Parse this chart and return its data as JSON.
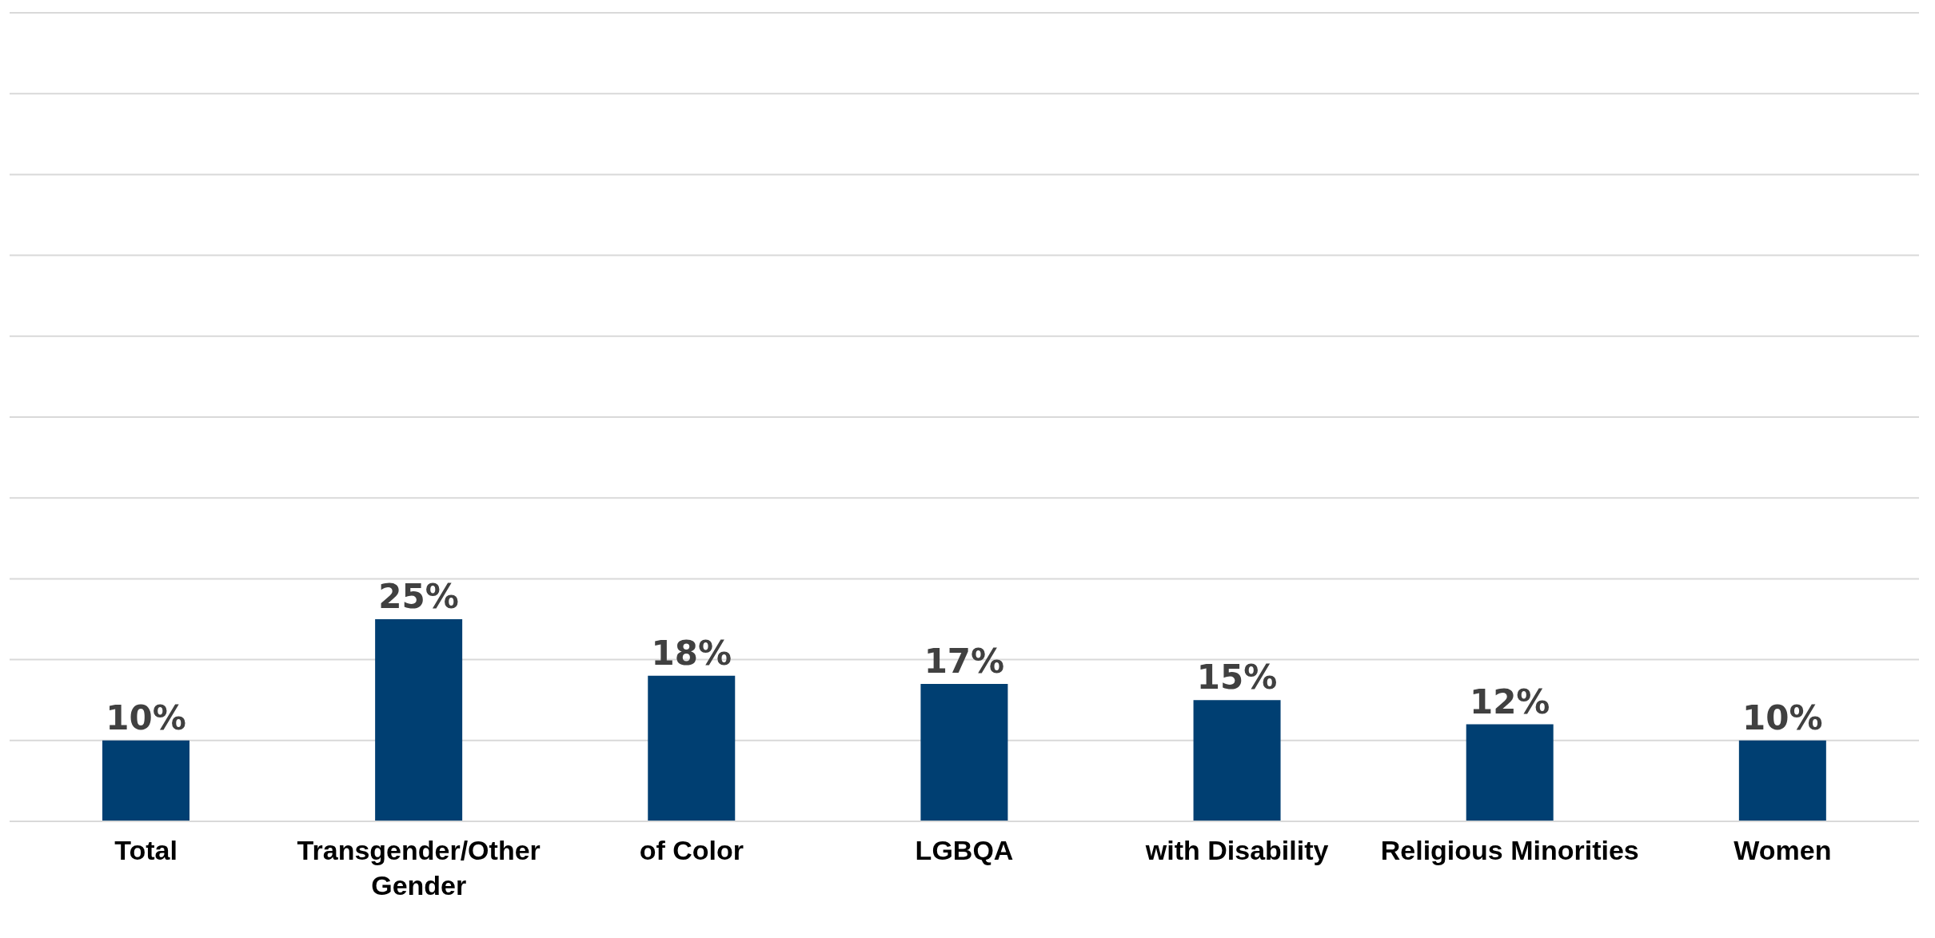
{
  "chart_data": {
    "type": "bar",
    "categories": [
      "Total",
      "Transgender/Other Gender",
      "of Color",
      "LGBQA",
      "with Disability",
      "Religious Minorities",
      "Women"
    ],
    "values": [
      10,
      25,
      18,
      17,
      15,
      12,
      10
    ],
    "value_labels": [
      "10%",
      "25%",
      "18%",
      "17%",
      "15%",
      "12%",
      "10%"
    ],
    "color": "#003f72",
    "ylim": [
      0,
      100
    ],
    "yticks": [
      {
        "value": 0,
        "label": null
      },
      {
        "value": 10,
        "label": null
      },
      {
        "value": 20,
        "label": null
      },
      {
        "value": 30,
        "label": null
      },
      {
        "value": 40,
        "label": null
      },
      {
        "value": 50,
        "label": null
      },
      {
        "value": 60,
        "label": null
      },
      {
        "value": 70,
        "label": null
      },
      {
        "value": 80,
        "label": null
      },
      {
        "value": 90,
        "label": null
      },
      {
        "value": 100,
        "label": null
      }
    ],
    "grid": "y",
    "tick_labels": "x"
  }
}
